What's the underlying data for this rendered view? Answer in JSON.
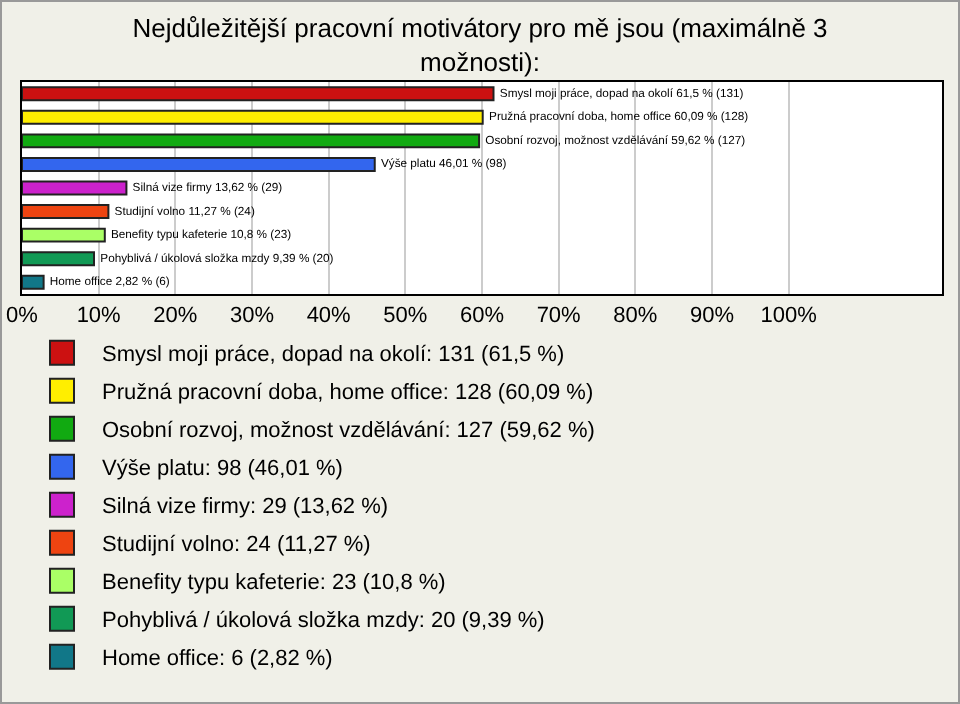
{
  "chart_data": {
    "type": "bar",
    "orientation": "horizontal",
    "title": "Nejdůležitější pracovní motivátory pro mě jsou (maximálně 3 možnosti):",
    "categories": [
      null,
      null,
      null,
      null,
      null,
      null,
      null,
      null,
      null
    ],
    "series": [
      {
        "name": "Smysl moji práce, dopad na okolí: 131 (61,5 %)",
        "color": "#cc1111",
        "values": [
          61.5,
          null,
          null,
          null,
          null,
          null,
          null,
          null,
          null
        ],
        "value_labels": [
          "Smysl moji práce, dopad na okolí 61,5 % (131)",
          null,
          null,
          null,
          null,
          null,
          null,
          null,
          null
        ]
      },
      {
        "name": "Pružná pracovní doba, home office: 128 (60,09 %)",
        "color": "#ffee00",
        "values": [
          null,
          60.09,
          null,
          null,
          null,
          null,
          null,
          null,
          null
        ],
        "value_labels": [
          null,
          "Pružná pracovní doba, home office 60,09 % (128)",
          null,
          null,
          null,
          null,
          null,
          null,
          null
        ]
      },
      {
        "name": "Osobní rozvoj, možnost vzdělávání: 127 (59,62 %)",
        "color": "#11aa11",
        "values": [
          null,
          null,
          59.62,
          null,
          null,
          null,
          null,
          null,
          null
        ],
        "value_labels": [
          null,
          null,
          "Osobní rozvoj, možnost vzdělávání 59,62 % (127)",
          null,
          null,
          null,
          null,
          null,
          null
        ]
      },
      {
        "name": "Výše platu: 98 (46,01 %)",
        "color": "#3366ee",
        "values": [
          null,
          null,
          null,
          46.01,
          null,
          null,
          null,
          null,
          null
        ],
        "value_labels": [
          null,
          null,
          null,
          "Výše platu 46,01 % (98)",
          null,
          null,
          null,
          null,
          null
        ]
      },
      {
        "name": "Silná vize firmy: 29 (13,62 %)",
        "color": "#cc22cc",
        "values": [
          null,
          null,
          null,
          null,
          13.62,
          null,
          null,
          null,
          null
        ],
        "value_labels": [
          null,
          null,
          null,
          null,
          "Silná vize firmy 13,62 % (29)",
          null,
          null,
          null,
          null
        ]
      },
      {
        "name": "Studijní volno: 24 (11,27 %)",
        "color": "#ee4411",
        "values": [
          null,
          null,
          null,
          null,
          null,
          11.27,
          null,
          null,
          null
        ],
        "value_labels": [
          null,
          null,
          null,
          null,
          null,
          "Studijní volno 11,27 % (24)",
          null,
          null,
          null
        ]
      },
      {
        "name": "Benefity typu kafeterie: 23 (10,8 %)",
        "color": "#aaff66",
        "values": [
          null,
          null,
          null,
          null,
          null,
          null,
          10.8,
          null,
          null
        ],
        "value_labels": [
          null,
          null,
          null,
          null,
          null,
          null,
          "Benefity typu kafeterie 10,8 % (23)",
          null,
          null
        ]
      },
      {
        "name": "Pohyblivá / úkolová složka mzdy: 20 (9,39 %)",
        "color": "#119955",
        "values": [
          null,
          null,
          null,
          null,
          null,
          null,
          null,
          9.39,
          null
        ],
        "value_labels": [
          null,
          null,
          null,
          null,
          null,
          null,
          null,
          "Pohyblivá / úkolová složka mzdy 9,39 % (20)",
          null
        ]
      },
      {
        "name": "Home office: 6 (2,82 %)",
        "color": "#117788",
        "values": [
          null,
          null,
          null,
          null,
          null,
          null,
          null,
          null,
          2.82
        ],
        "value_labels": [
          null,
          null,
          null,
          null,
          null,
          null,
          null,
          null,
          "Home office 2,82 % (6)"
        ]
      }
    ],
    "xlim": [
      0,
      120
    ],
    "xticks": [
      {
        "value": 0,
        "label": "0%"
      },
      {
        "value": 10,
        "label": "10%"
      },
      {
        "value": 20,
        "label": "20%"
      },
      {
        "value": 30,
        "label": "30%"
      },
      {
        "value": 40,
        "label": "40%"
      },
      {
        "value": 50,
        "label": "50%"
      },
      {
        "value": 60,
        "label": "60%"
      },
      {
        "value": 70,
        "label": "70%"
      },
      {
        "value": 80,
        "label": "80%"
      },
      {
        "value": 90,
        "label": "90%"
      },
      {
        "value": 100,
        "label": "100%"
      }
    ],
    "grid": "x",
    "legend": "bottom",
    "tick_labels": "x"
  }
}
